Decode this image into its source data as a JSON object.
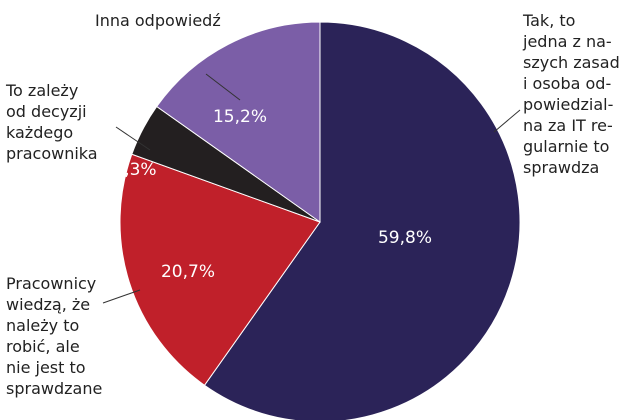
{
  "chart_data": {
    "type": "pie",
    "categories": [
      "Tak, to\njedna z na-\nszych zasad\ni osoba od-\npowiedzial-\nna za IT re-\ngularnie to\nsprawdza",
      "Pracownicy\nwiedzą, że\nnależy to\nrobić, ale\nnie jest to\nsprawdzane",
      "To zależy\nod decyzji\nkażdego\npracownika",
      "Inna odpowiedź"
    ],
    "values": [
      59.8,
      20.7,
      4.3,
      15.2
    ],
    "value_labels": [
      "59,8%",
      "20,7%",
      "4,3%",
      "15,2%"
    ],
    "colors": [
      "#2b2358",
      "#c0202a",
      "#231f20",
      "#7b5ea7"
    ]
  }
}
